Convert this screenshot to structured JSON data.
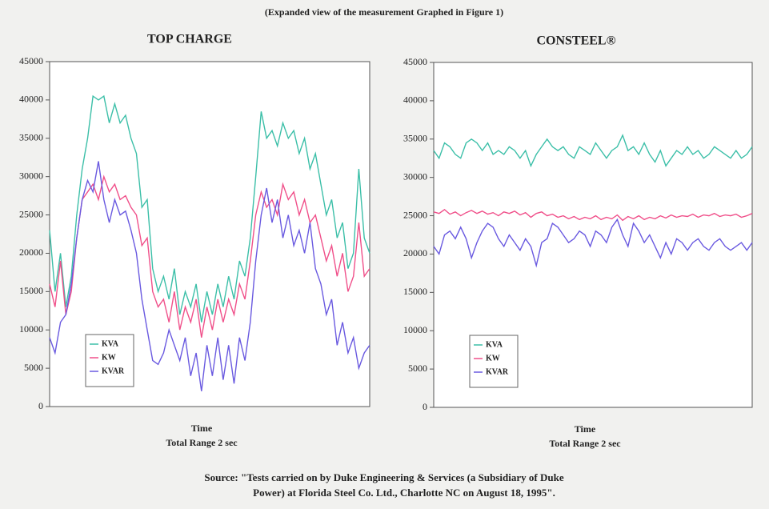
{
  "header": "(Expanded view of the measurement Graphed in Figure 1)",
  "source": [
    "Source:  \"Tests carried on by Duke Engineering & Services (a Subsidiary of Duke",
    "Power) at Florida Steel Co. Ltd., Charlotte NC on August 18, 1995\"."
  ],
  "chart_data": [
    {
      "type": "line",
      "title": "TOP CHARGE",
      "xlabel": [
        "Time",
        "Total Range 2 sec"
      ],
      "ylim": [
        0,
        45000
      ],
      "yticks": [
        0,
        5000,
        10000,
        15000,
        20000,
        25000,
        30000,
        35000,
        40000,
        45000
      ],
      "grid": false,
      "legend": "lower left",
      "series": [
        {
          "name": "KVA",
          "color": "#3cbfa8",
          "values": [
            23000,
            15000,
            20000,
            13000,
            17000,
            25000,
            31000,
            35000,
            40500,
            40000,
            40500,
            37000,
            39500,
            37000,
            38000,
            35000,
            33000,
            26000,
            27000,
            18000,
            15000,
            17000,
            14000,
            18000,
            12000,
            15000,
            13000,
            16000,
            11000,
            15000,
            12000,
            16000,
            13000,
            17000,
            14000,
            19000,
            17000,
            22000,
            30000,
            38500,
            35000,
            36000,
            34000,
            37000,
            35000,
            36000,
            33000,
            35000,
            31000,
            33000,
            29000,
            25000,
            27000,
            22000,
            24000,
            18000,
            20000,
            31000,
            22000,
            20000
          ]
        },
        {
          "name": "KW",
          "color": "#f0508a",
          "values": [
            16000,
            13000,
            19000,
            12000,
            15000,
            22000,
            27000,
            28000,
            29000,
            27000,
            30000,
            28000,
            29000,
            27000,
            27500,
            26000,
            25000,
            21000,
            22000,
            15000,
            13000,
            14000,
            11000,
            15000,
            10000,
            13000,
            11000,
            14000,
            9000,
            13000,
            10000,
            14000,
            11000,
            14000,
            12000,
            16000,
            14000,
            19000,
            25000,
            28000,
            26000,
            27000,
            25000,
            29000,
            27000,
            28000,
            25000,
            27000,
            24000,
            25000,
            22000,
            19000,
            21000,
            17000,
            20000,
            15000,
            17000,
            24000,
            17000,
            18000
          ]
        },
        {
          "name": "KVAR",
          "color": "#6a5ae0",
          "values": [
            9000,
            7000,
            11000,
            12000,
            16000,
            22000,
            27000,
            29500,
            28000,
            32000,
            27000,
            24000,
            27000,
            25000,
            25500,
            23000,
            20000,
            14000,
            10000,
            6000,
            5500,
            7000,
            10000,
            8000,
            6000,
            9000,
            4000,
            7000,
            2000,
            8000,
            4000,
            9000,
            3500,
            8000,
            3000,
            9000,
            6000,
            11000,
            19000,
            25000,
            28500,
            24000,
            27000,
            22000,
            25000,
            21000,
            23000,
            20000,
            24000,
            18000,
            16000,
            12000,
            14000,
            8000,
            11000,
            7000,
            9000,
            5000,
            7000,
            8000
          ]
        }
      ]
    },
    {
      "type": "line",
      "title": "CONSTEEL®",
      "xlabel": [
        "Time",
        "Total Range 2 sec"
      ],
      "ylim": [
        0,
        45000
      ],
      "yticks": [
        0,
        5000,
        10000,
        15000,
        20000,
        25000,
        30000,
        35000,
        40000,
        45000
      ],
      "grid": false,
      "legend": "lower left",
      "series": [
        {
          "name": "KVA",
          "color": "#3cbfa8",
          "values": [
            33500,
            32500,
            34500,
            34000,
            33000,
            32500,
            34500,
            35000,
            34500,
            33500,
            34500,
            33000,
            33500,
            33000,
            34000,
            33500,
            32500,
            33500,
            31500,
            33000,
            34000,
            35000,
            34000,
            33500,
            34000,
            33000,
            32500,
            34000,
            33500,
            33000,
            34500,
            33500,
            32500,
            33500,
            34000,
            35500,
            33500,
            34000,
            33000,
            34500,
            33000,
            32000,
            33500,
            31500,
            32500,
            33500,
            33000,
            34000,
            33000,
            33500,
            32500,
            33000,
            34000,
            33500,
            33000,
            32500,
            33500,
            32500,
            33000,
            34000
          ]
        },
        {
          "name": "KW",
          "color": "#f0508a",
          "values": [
            25500,
            25300,
            25800,
            25200,
            25500,
            25000,
            25400,
            25700,
            25300,
            25600,
            25200,
            25400,
            25000,
            25500,
            25300,
            25600,
            25100,
            25400,
            24800,
            25300,
            25500,
            25000,
            25200,
            24800,
            25000,
            24600,
            24900,
            24500,
            24800,
            24600,
            25000,
            24500,
            24800,
            24600,
            25100,
            24400,
            24900,
            24600,
            25000,
            24500,
            24800,
            24600,
            25000,
            24700,
            25100,
            24800,
            25000,
            24900,
            25200,
            24800,
            25100,
            25000,
            25300,
            24900,
            25100,
            25000,
            25200,
            24800,
            25000,
            25300
          ]
        },
        {
          "name": "KVAR",
          "color": "#6a5ae0",
          "values": [
            21000,
            20000,
            22500,
            23000,
            22000,
            23500,
            22000,
            19500,
            21500,
            23000,
            24000,
            23500,
            22000,
            21000,
            22500,
            21500,
            20500,
            22000,
            21000,
            18500,
            21500,
            22000,
            24000,
            23500,
            22500,
            21500,
            22000,
            23000,
            22500,
            21000,
            23000,
            22500,
            21500,
            23500,
            24500,
            22500,
            21000,
            24000,
            23000,
            21500,
            22500,
            21000,
            19500,
            21500,
            20000,
            22000,
            21500,
            20500,
            21500,
            22000,
            21000,
            20500,
            21500,
            22000,
            21000,
            20500,
            21000,
            21500,
            20500,
            21500
          ]
        }
      ]
    }
  ]
}
